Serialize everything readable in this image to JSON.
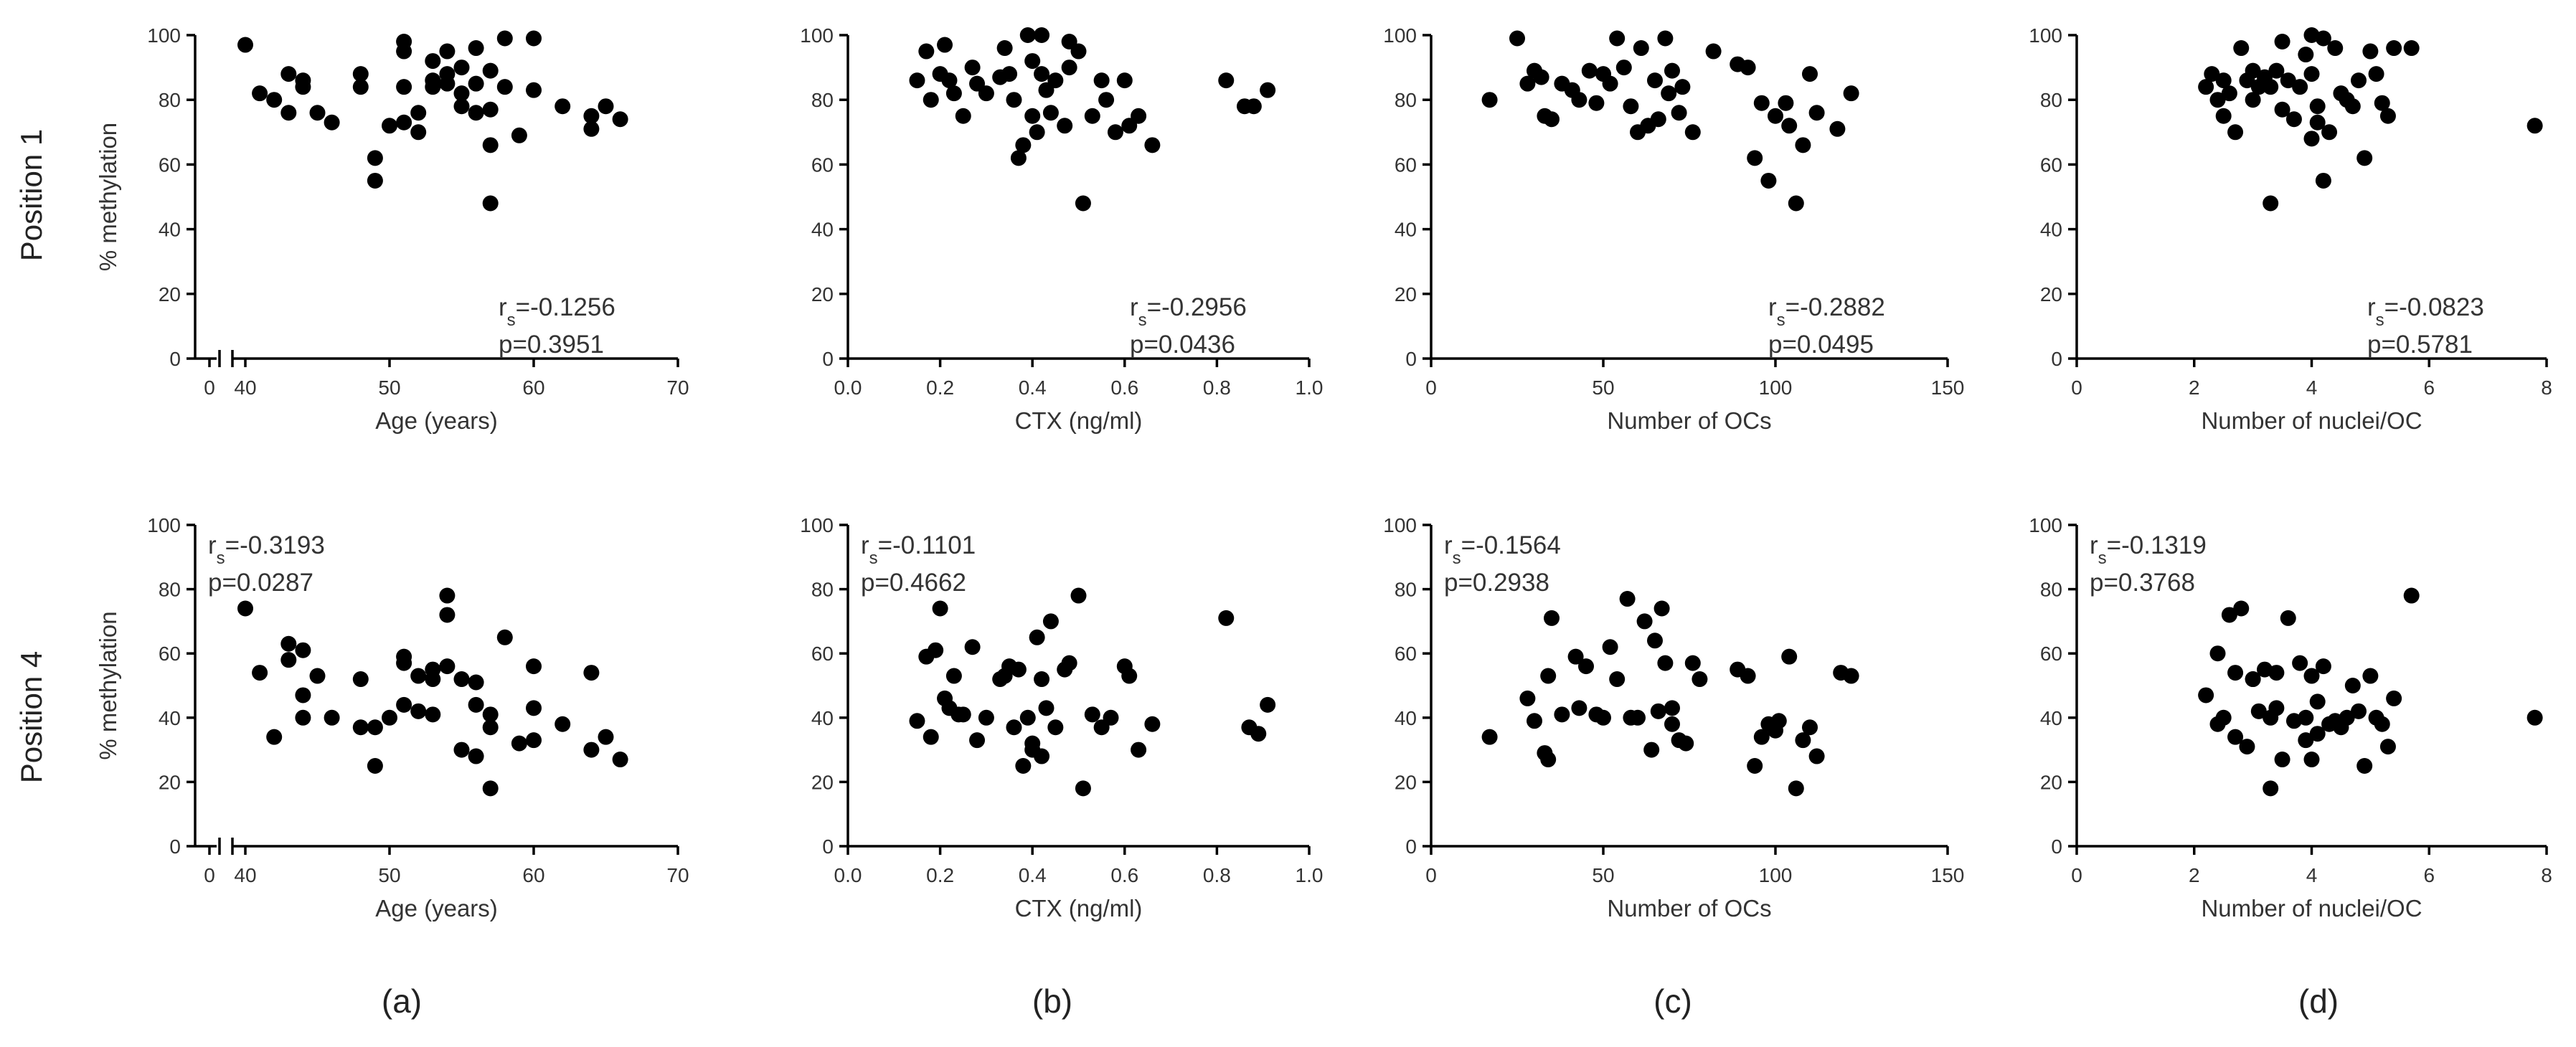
{
  "figure": {
    "row_labels": [
      "Position 1",
      "Position 4"
    ],
    "y_axis_label": "% methylation",
    "panel_letters": [
      "(a)",
      "(b)",
      "(c)",
      "(d)"
    ]
  },
  "chart_data": [
    {
      "id": "p1_age",
      "type": "scatter",
      "row": 0,
      "col": 0,
      "xlabel": "Age (years)",
      "ylabel": "% methylation",
      "xlim": [
        0,
        70
      ],
      "ylim": [
        0,
        100
      ],
      "xticks": [
        0,
        40,
        50,
        60,
        70
      ],
      "xtick_labels": [
        "0",
        "40",
        "50",
        "60",
        "70"
      ],
      "yticks": [
        0,
        20,
        40,
        60,
        80,
        100
      ],
      "axis_break": [
        0,
        40
      ],
      "annotation": {
        "position": "bottom-right",
        "rs": "=-0.1256",
        "p": "p=0.3951"
      },
      "x": [
        40,
        41,
        42,
        43,
        43,
        44,
        44,
        45,
        46,
        48,
        48,
        49,
        49,
        50,
        51,
        51,
        51,
        51,
        52,
        52,
        53,
        53,
        53,
        54,
        54,
        54,
        55,
        55,
        55,
        56,
        56,
        56,
        57,
        57,
        57,
        57,
        58,
        58,
        59,
        60,
        60,
        62,
        64,
        64,
        65,
        66
      ],
      "y": [
        97,
        82,
        80,
        76,
        88,
        86,
        84,
        76,
        73,
        84,
        88,
        62,
        55,
        72,
        73,
        84,
        95,
        98,
        70,
        76,
        84,
        86,
        92,
        85,
        88,
        95,
        90,
        78,
        82,
        96,
        85,
        76,
        48,
        66,
        77,
        89,
        84,
        99,
        69,
        99,
        83,
        78,
        71,
        75,
        78,
        74
      ]
    },
    {
      "id": "p1_ctx",
      "type": "scatter",
      "row": 0,
      "col": 1,
      "xlabel": "CTX (ng/ml)",
      "ylabel": "% methylation",
      "xlim": [
        0,
        1
      ],
      "ylim": [
        0,
        100
      ],
      "xticks": [
        0,
        0.2,
        0.4,
        0.6,
        0.8,
        1.0
      ],
      "xtick_labels": [
        "0.0",
        "0.2",
        "0.4",
        "0.6",
        "0.8",
        "1.0"
      ],
      "yticks": [
        0,
        20,
        40,
        60,
        80,
        100
      ],
      "annotation": {
        "position": "bottom-right",
        "rs": "=-0.2956",
        "p": "p=0.0436"
      },
      "x": [
        0.15,
        0.17,
        0.18,
        0.2,
        0.21,
        0.22,
        0.23,
        0.25,
        0.27,
        0.28,
        0.3,
        0.33,
        0.34,
        0.35,
        0.36,
        0.37,
        0.38,
        0.39,
        0.4,
        0.4,
        0.41,
        0.42,
        0.42,
        0.43,
        0.44,
        0.45,
        0.47,
        0.48,
        0.48,
        0.5,
        0.51,
        0.53,
        0.55,
        0.56,
        0.58,
        0.6,
        0.61,
        0.63,
        0.66,
        0.82,
        0.86,
        0.88,
        0.91
      ],
      "y": [
        86,
        95,
        80,
        88,
        97,
        86,
        82,
        75,
        90,
        85,
        82,
        87,
        96,
        88,
        80,
        62,
        66,
        100,
        75,
        92,
        70,
        88,
        100,
        83,
        76,
        86,
        72,
        98,
        90,
        95,
        48,
        75,
        86,
        80,
        70,
        86,
        72,
        75,
        66,
        86,
        78,
        78,
        83
      ]
    },
    {
      "id": "p1_ocs",
      "type": "scatter",
      "row": 0,
      "col": 2,
      "xlabel": "Number of OCs",
      "ylabel": "% methylation",
      "xlim": [
        0,
        150
      ],
      "ylim": [
        0,
        100
      ],
      "xticks": [
        0,
        50,
        100,
        150
      ],
      "xtick_labels": [
        "0",
        "50",
        "100",
        "150"
      ],
      "yticks": [
        0,
        20,
        40,
        60,
        80,
        100
      ],
      "annotation": {
        "position": "bottom-right",
        "rs": "=-0.2882",
        "p": "p=0.0495"
      },
      "x": [
        17,
        25,
        28,
        30,
        32,
        33,
        35,
        38,
        41,
        43,
        46,
        48,
        50,
        52,
        54,
        56,
        58,
        60,
        61,
        63,
        65,
        66,
        68,
        69,
        70,
        72,
        73,
        76,
        82,
        89,
        92,
        94,
        96,
        98,
        100,
        103,
        104,
        106,
        108,
        110,
        112,
        118,
        122
      ],
      "y": [
        80,
        99,
        85,
        89,
        87,
        75,
        74,
        85,
        83,
        80,
        89,
        79,
        88,
        85,
        99,
        90,
        78,
        70,
        96,
        72,
        86,
        74,
        99,
        82,
        89,
        76,
        84,
        70,
        95,
        91,
        90,
        62,
        79,
        55,
        75,
        79,
        72,
        48,
        66,
        88,
        76,
        71,
        82
      ]
    },
    {
      "id": "p1_nuclei",
      "type": "scatter",
      "row": 0,
      "col": 3,
      "xlabel": "Number of nuclei/OC",
      "ylabel": "% methylation",
      "xlim": [
        0,
        8
      ],
      "ylim": [
        0,
        100
      ],
      "xticks": [
        0,
        2,
        4,
        6,
        8
      ],
      "xtick_labels": [
        "0",
        "2",
        "4",
        "6",
        "8"
      ],
      "yticks": [
        0,
        20,
        40,
        60,
        80,
        100
      ],
      "annotation": {
        "position": "bottom-right",
        "rs": "=-0.0823",
        "p": "p=0.5781"
      },
      "x": [
        2.2,
        2.3,
        2.4,
        2.5,
        2.5,
        2.6,
        2.7,
        2.8,
        2.9,
        3,
        3,
        3.1,
        3.2,
        3.3,
        3.3,
        3.4,
        3.5,
        3.5,
        3.6,
        3.7,
        3.8,
        3.9,
        4,
        4,
        4,
        4.1,
        4.1,
        4.2,
        4.2,
        4.3,
        4.4,
        4.5,
        4.6,
        4.7,
        4.8,
        4.9,
        5,
        5.1,
        5.2,
        5.3,
        5.4,
        5.7,
        7.8
      ],
      "y": [
        84,
        88,
        80,
        75,
        86,
        82,
        70,
        96,
        86,
        89,
        80,
        84,
        87,
        48,
        84,
        89,
        77,
        98,
        86,
        74,
        84,
        94,
        68,
        88,
        100,
        73,
        78,
        55,
        99,
        70,
        96,
        82,
        80,
        78,
        86,
        62,
        95,
        88,
        79,
        75,
        96,
        96,
        72
      ]
    },
    {
      "id": "p4_age",
      "type": "scatter",
      "row": 1,
      "col": 0,
      "xlabel": "Age (years)",
      "ylabel": "% methylation",
      "xlim": [
        0,
        70
      ],
      "ylim": [
        0,
        100
      ],
      "xticks": [
        0,
        40,
        50,
        60,
        70
      ],
      "xtick_labels": [
        "0",
        "40",
        "50",
        "60",
        "70"
      ],
      "yticks": [
        0,
        20,
        40,
        60,
        80,
        100
      ],
      "axis_break": [
        0,
        40
      ],
      "annotation": {
        "position": "top-left",
        "rs": "=-0.3193",
        "p": "p=0.0287"
      },
      "x": [
        40,
        41,
        42,
        43,
        43,
        44,
        44,
        44,
        45,
        46,
        48,
        48,
        49,
        49,
        50,
        51,
        51,
        51,
        52,
        52,
        53,
        53,
        53,
        54,
        54,
        54,
        55,
        55,
        56,
        56,
        56,
        57,
        57,
        57,
        58,
        59,
        60,
        60,
        60,
        62,
        64,
        64,
        65,
        66
      ],
      "y": [
        74,
        54,
        34,
        63,
        58,
        61,
        47,
        40,
        53,
        40,
        52,
        37,
        25,
        37,
        40,
        57,
        59,
        44,
        42,
        53,
        55,
        41,
        52,
        56,
        78,
        72,
        30,
        52,
        51,
        28,
        44,
        41,
        18,
        37,
        65,
        32,
        56,
        33,
        43,
        38,
        30,
        54,
        34,
        27
      ]
    },
    {
      "id": "p4_ctx",
      "type": "scatter",
      "row": 1,
      "col": 1,
      "xlabel": "CTX (ng/ml)",
      "ylabel": "% methylation",
      "xlim": [
        0,
        1
      ],
      "ylim": [
        0,
        100
      ],
      "xticks": [
        0,
        0.2,
        0.4,
        0.6,
        0.8,
        1.0
      ],
      "xtick_labels": [
        "0.0",
        "0.2",
        "0.4",
        "0.6",
        "0.8",
        "1.0"
      ],
      "yticks": [
        0,
        20,
        40,
        60,
        80,
        100
      ],
      "annotation": {
        "position": "top-left",
        "rs": "=-0.1101",
        "p": "p=0.4662"
      },
      "x": [
        0.15,
        0.17,
        0.18,
        0.19,
        0.2,
        0.21,
        0.22,
        0.23,
        0.24,
        0.25,
        0.27,
        0.28,
        0.3,
        0.33,
        0.34,
        0.35,
        0.36,
        0.37,
        0.38,
        0.39,
        0.4,
        0.4,
        0.41,
        0.42,
        0.42,
        0.43,
        0.44,
        0.45,
        0.47,
        0.48,
        0.5,
        0.51,
        0.53,
        0.55,
        0.57,
        0.6,
        0.61,
        0.63,
        0.66,
        0.82,
        0.87,
        0.89,
        0.91
      ],
      "y": [
        39,
        59,
        34,
        61,
        74,
        46,
        43,
        53,
        41,
        41,
        62,
        33,
        40,
        52,
        53,
        56,
        37,
        55,
        25,
        40,
        30,
        32,
        65,
        52,
        28,
        43,
        70,
        37,
        55,
        57,
        78,
        18,
        41,
        37,
        40,
        56,
        53,
        30,
        38,
        71,
        37,
        35,
        44
      ]
    },
    {
      "id": "p4_ocs",
      "type": "scatter",
      "row": 1,
      "col": 2,
      "xlabel": "Number of OCs",
      "ylabel": "% methylation",
      "xlim": [
        0,
        150
      ],
      "ylim": [
        0,
        100
      ],
      "xticks": [
        0,
        50,
        100,
        150
      ],
      "xtick_labels": [
        "0",
        "50",
        "100",
        "150"
      ],
      "yticks": [
        0,
        20,
        40,
        60,
        80,
        100
      ],
      "annotation": {
        "position": "top-left",
        "rs": "=-0.1564",
        "p": "p=0.2938"
      },
      "x": [
        17,
        28,
        30,
        33,
        34,
        34,
        35,
        38,
        42,
        43,
        45,
        48,
        50,
        52,
        54,
        57,
        58,
        60,
        62,
        64,
        65,
        66,
        67,
        68,
        70,
        70,
        72,
        74,
        76,
        78,
        89,
        92,
        94,
        96,
        98,
        100,
        101,
        104,
        106,
        108,
        110,
        112,
        119,
        122
      ],
      "y": [
        34,
        46,
        39,
        29,
        27,
        53,
        71,
        41,
        59,
        43,
        56,
        41,
        40,
        62,
        52,
        77,
        40,
        40,
        70,
        30,
        64,
        42,
        74,
        57,
        43,
        38,
        33,
        32,
        57,
        52,
        55,
        53,
        25,
        34,
        38,
        36,
        39,
        59,
        18,
        33,
        37,
        28,
        54,
        53
      ]
    },
    {
      "id": "p4_nuclei",
      "type": "scatter",
      "row": 1,
      "col": 3,
      "xlabel": "Number of nuclei/OC",
      "ylabel": "% methylation",
      "xlim": [
        0,
        8
      ],
      "ylim": [
        0,
        100
      ],
      "xticks": [
        0,
        2,
        4,
        6,
        8
      ],
      "xtick_labels": [
        "0",
        "2",
        "4",
        "6",
        "8"
      ],
      "yticks": [
        0,
        20,
        40,
        60,
        80,
        100
      ],
      "annotation": {
        "position": "top-left",
        "rs": "=-0.1319",
        "p": "p=0.3768"
      },
      "x": [
        2.2,
        2.4,
        2.4,
        2.5,
        2.6,
        2.7,
        2.7,
        2.8,
        2.9,
        3,
        3,
        3.1,
        3.2,
        3.3,
        3.3,
        3.4,
        3.4,
        3.5,
        3.6,
        3.7,
        3.8,
        3.9,
        3.9,
        4,
        4,
        4.1,
        4.1,
        4.2,
        4.3,
        4.4,
        4.5,
        4.6,
        4.7,
        4.8,
        4.9,
        5,
        5.1,
        5.2,
        5.3,
        5.4,
        5.7,
        7.8
      ],
      "y": [
        47,
        60,
        38,
        40,
        72,
        34,
        54,
        74,
        31,
        52,
        52,
        42,
        55,
        18,
        40,
        54,
        43,
        27,
        71,
        39,
        57,
        33,
        40,
        27,
        53,
        35,
        45,
        56,
        38,
        39,
        37,
        40,
        50,
        42,
        25,
        53,
        40,
        38,
        31,
        46,
        78,
        40
      ]
    }
  ]
}
